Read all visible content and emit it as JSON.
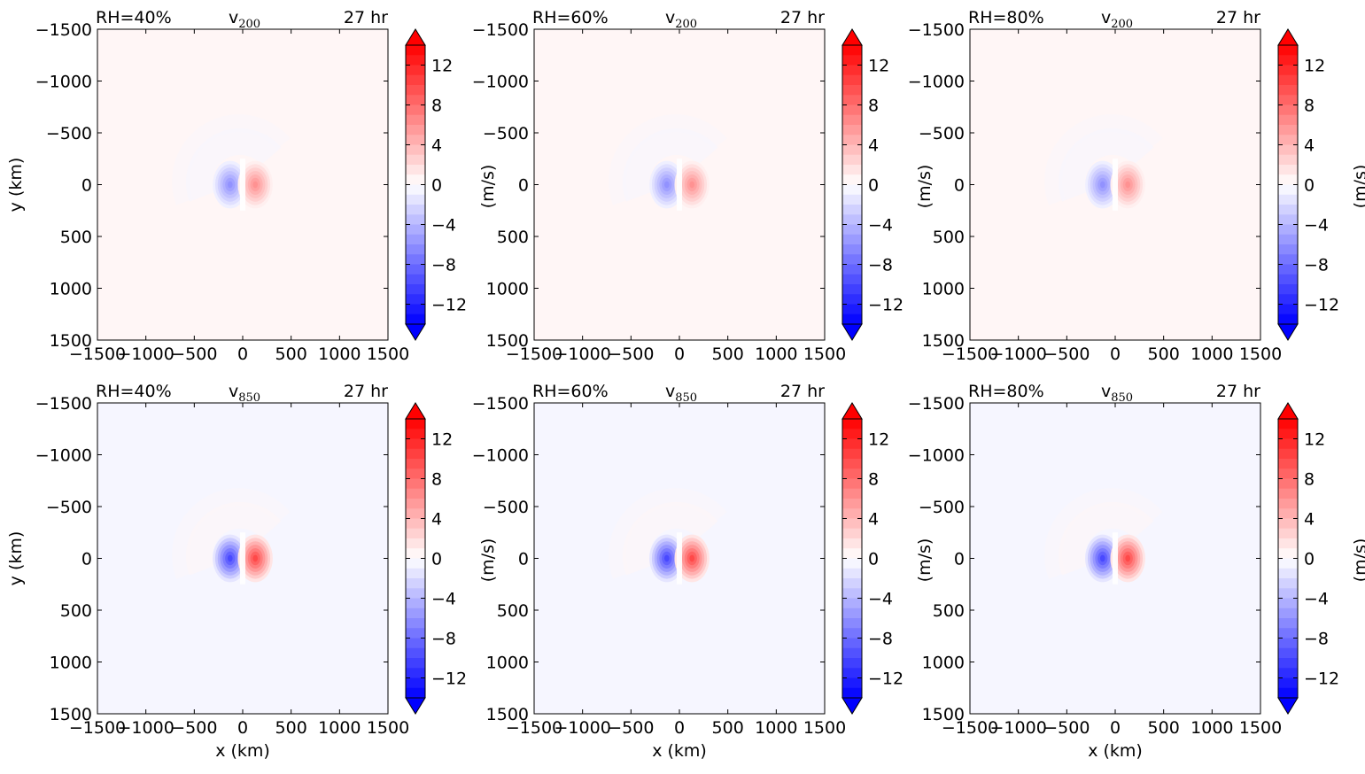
{
  "figure": {
    "x_axis_label": "x (km)",
    "y_axis_label": "y (km)",
    "colorbar_label": "(m/s)",
    "xticks": [
      "−1500",
      "−1000",
      "−500",
      "0",
      "500",
      "1000",
      "1500"
    ],
    "yticks": [
      "1500",
      "1000",
      "500",
      "0",
      "−500",
      "−1000",
      "−1500"
    ],
    "cbar_ticks": [
      "12",
      "8",
      "4",
      "0",
      "−4",
      "−8",
      "−12"
    ],
    "colors": {
      "positive": "#ff0000",
      "negative": "#0000ff",
      "zero": "#ffffff"
    }
  },
  "chart_data": [
    {
      "type": "heatmap",
      "row": 0,
      "col": 0,
      "left_label": "RH=40%",
      "var": "v",
      "sub": "200",
      "time_label": "27 hr",
      "xlim": [
        -1500,
        1500
      ],
      "ylim": [
        -1500,
        1500
      ],
      "clim": [
        -14,
        14
      ],
      "xticks": [
        -1500,
        -1000,
        -500,
        0,
        500,
        1000,
        1500
      ],
      "yticks": [
        -1500,
        -1000,
        -500,
        0,
        500,
        1000,
        1500
      ],
      "cbar_ticks": [
        -12,
        -8,
        -4,
        0,
        4,
        8,
        12
      ],
      "background_value": 0.5,
      "dipole_peak": 6,
      "dipole_center": [
        0,
        0
      ]
    },
    {
      "type": "heatmap",
      "row": 0,
      "col": 1,
      "left_label": "RH=60%",
      "var": "v",
      "sub": "200",
      "time_label": "27 hr",
      "xlim": [
        -1500,
        1500
      ],
      "ylim": [
        -1500,
        1500
      ],
      "clim": [
        -14,
        14
      ],
      "xticks": [
        -1500,
        -1000,
        -500,
        0,
        500,
        1000,
        1500
      ],
      "yticks": [
        -1500,
        -1000,
        -500,
        0,
        500,
        1000,
        1500
      ],
      "cbar_ticks": [
        -12,
        -8,
        -4,
        0,
        4,
        8,
        12
      ],
      "background_value": 0.5,
      "dipole_peak": 6,
      "dipole_center": [
        0,
        0
      ]
    },
    {
      "type": "heatmap",
      "row": 0,
      "col": 2,
      "left_label": "RH=80%",
      "var": "v",
      "sub": "200",
      "time_label": "27 hr",
      "xlim": [
        -1500,
        1500
      ],
      "ylim": [
        -1500,
        1500
      ],
      "clim": [
        -14,
        14
      ],
      "xticks": [
        -1500,
        -1000,
        -500,
        0,
        500,
        1000,
        1500
      ],
      "yticks": [
        -1500,
        -1000,
        -500,
        0,
        500,
        1000,
        1500
      ],
      "cbar_ticks": [
        -12,
        -8,
        -4,
        0,
        4,
        8,
        12
      ],
      "background_value": 0.5,
      "dipole_peak": 6,
      "dipole_center": [
        0,
        0
      ]
    },
    {
      "type": "heatmap",
      "row": 1,
      "col": 0,
      "left_label": "RH=40%",
      "var": "v",
      "sub": "850",
      "time_label": "27 hr",
      "xlim": [
        -1500,
        1500
      ],
      "ylim": [
        -1500,
        1500
      ],
      "clim": [
        -14,
        14
      ],
      "xticks": [
        -1500,
        -1000,
        -500,
        0,
        500,
        1000,
        1500
      ],
      "yticks": [
        -1500,
        -1000,
        -500,
        0,
        500,
        1000,
        1500
      ],
      "cbar_ticks": [
        -12,
        -8,
        -4,
        0,
        4,
        8,
        12
      ],
      "background_value": -0.5,
      "dipole_peak": 10,
      "dipole_center": [
        0,
        0
      ]
    },
    {
      "type": "heatmap",
      "row": 1,
      "col": 1,
      "left_label": "RH=60%",
      "var": "v",
      "sub": "850",
      "time_label": "27 hr",
      "xlim": [
        -1500,
        1500
      ],
      "ylim": [
        -1500,
        1500
      ],
      "clim": [
        -14,
        14
      ],
      "xticks": [
        -1500,
        -1000,
        -500,
        0,
        500,
        1000,
        1500
      ],
      "yticks": [
        -1500,
        -1000,
        -500,
        0,
        500,
        1000,
        1500
      ],
      "cbar_ticks": [
        -12,
        -8,
        -4,
        0,
        4,
        8,
        12
      ],
      "background_value": -0.5,
      "dipole_peak": 10,
      "dipole_center": [
        0,
        0
      ]
    },
    {
      "type": "heatmap",
      "row": 1,
      "col": 2,
      "left_label": "RH=80%",
      "var": "v",
      "sub": "850",
      "time_label": "27 hr",
      "xlim": [
        -1500,
        1500
      ],
      "ylim": [
        -1500,
        1500
      ],
      "clim": [
        -14,
        14
      ],
      "xticks": [
        -1500,
        -1000,
        -500,
        0,
        500,
        1000,
        1500
      ],
      "yticks": [
        -1500,
        -1000,
        -500,
        0,
        500,
        1000,
        1500
      ],
      "cbar_ticks": [
        -12,
        -8,
        -4,
        0,
        4,
        8,
        12
      ],
      "background_value": -0.5,
      "dipole_peak": 10,
      "dipole_center": [
        0,
        0
      ]
    }
  ]
}
